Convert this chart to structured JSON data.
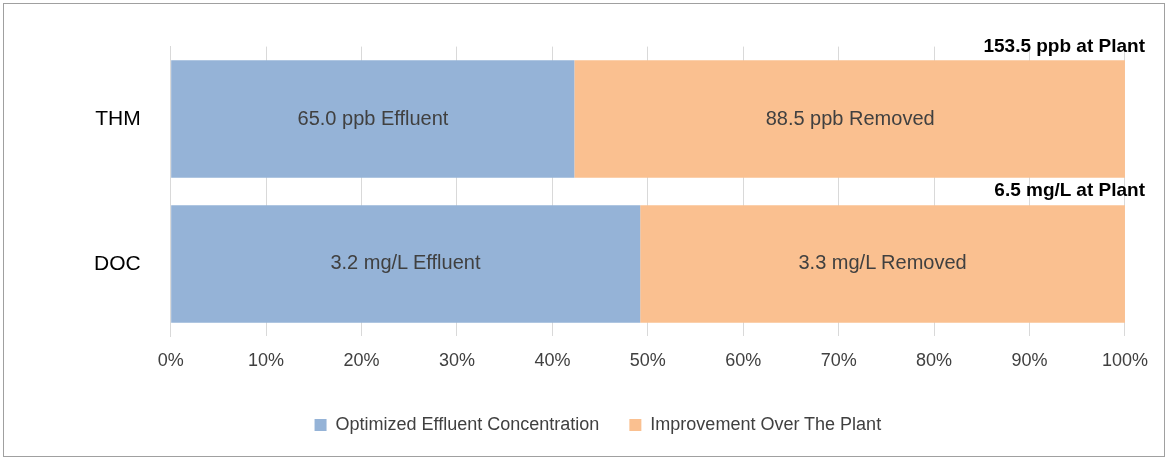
{
  "chart_data": {
    "type": "bar",
    "orientation": "horizontal",
    "stacked": true,
    "categories": [
      "THM",
      "DOC"
    ],
    "series": [
      {
        "name": "Optimized Effluent Concentration",
        "color": "#95b3d7",
        "values": [
          42.3,
          49.2
        ]
      },
      {
        "name": "Improvement Over The Plant",
        "color": "#fac090",
        "values": [
          57.7,
          50.8
        ]
      }
    ],
    "annotations": [
      {
        "text": "65.0 ppb Effluent",
        "x": 21.2,
        "y": "THM"
      },
      {
        "text": "88.5 ppb Removed",
        "x": 71.2,
        "y": "THM"
      },
      {
        "text": "3.2 mg/L Effluent",
        "x": 24.6,
        "y": "DOC"
      },
      {
        "text": "3.3 mg/L Removed",
        "x": 74.6,
        "y": "DOC"
      },
      "153.5 ppb at Plant",
      "6.5 mg/L at Plant"
    ],
    "xlim": [
      0,
      100
    ],
    "xticks": [
      {
        "value": 0,
        "label": "0%"
      },
      {
        "value": 10,
        "label": "10%"
      },
      {
        "value": 20,
        "label": "20%"
      },
      {
        "value": 30,
        "label": "30%"
      },
      {
        "value": 40,
        "label": "40%"
      },
      {
        "value": 50,
        "label": "50%"
      },
      {
        "value": 60,
        "label": "60%"
      },
      {
        "value": 70,
        "label": "70%"
      },
      {
        "value": 80,
        "label": "80%"
      },
      {
        "value": 90,
        "label": "90%"
      },
      {
        "value": 100,
        "label": "100%"
      }
    ],
    "grid": "x",
    "legend": "bottom"
  }
}
